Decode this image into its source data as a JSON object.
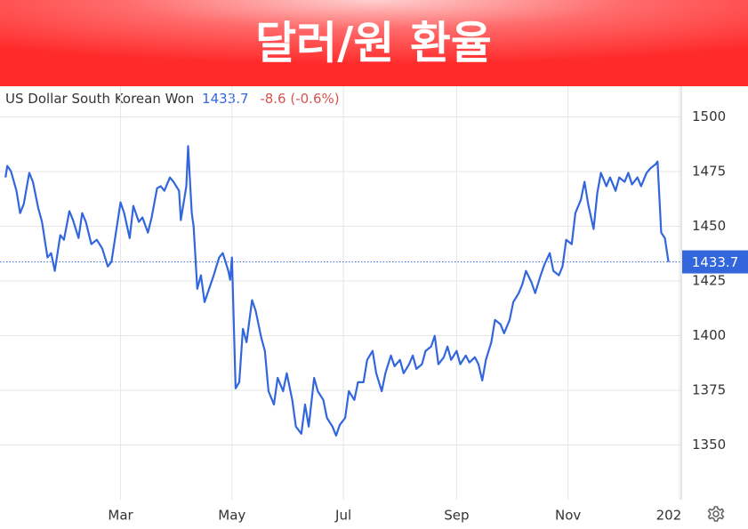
{
  "chart_data": {
    "type": "line",
    "title": "달러/원 환율",
    "series": [
      {
        "name": "US Dollar South Korean Won",
        "color": "#3366dd",
        "x": [
          -3,
          -2,
          0,
          3,
          5,
          7,
          10,
          12,
          15,
          17,
          20,
          22,
          24,
          27,
          29,
          32,
          34,
          37,
          39,
          41,
          44,
          47,
          50,
          53,
          55,
          58,
          60,
          62,
          65,
          67,
          70,
          72,
          75,
          77,
          80,
          82,
          84,
          87,
          89,
          92,
          93,
          96,
          97,
          99,
          100,
          102,
          104,
          106,
          109,
          111,
          114,
          116,
          119,
          120,
          121,
          123,
          125,
          127,
          129,
          132,
          134,
          137,
          139,
          141,
          144,
          146,
          149,
          151,
          154,
          156,
          159,
          161,
          163,
          166,
          168,
          171,
          173,
          176,
          178,
          180,
          183,
          185,
          188,
          190,
          193,
          195,
          198,
          200,
          203,
          205,
          208,
          210,
          213,
          215,
          218,
          220,
          222,
          225,
          227,
          230,
          232,
          234,
          237,
          239,
          241,
          244,
          246,
          249,
          251,
          254,
          256,
          258,
          260,
          263,
          265,
          268,
          270,
          273,
          275,
          278,
          280,
          282,
          285,
          287,
          290,
          292,
          295,
          297,
          300,
          302,
          304,
          307,
          309,
          312,
          314,
          316,
          319,
          321,
          323,
          326,
          328,
          331,
          333,
          336,
          338,
          340,
          343,
          345,
          348,
          350,
          353,
          354,
          356,
          358,
          360
        ],
        "values": [
          1472.3,
          1477.6,
          1475.2,
          1466.2,
          1456.0,
          1460.1,
          1474.4,
          1470.3,
          1458.1,
          1452.0,
          1435.7,
          1437.7,
          1429.6,
          1445.9,
          1443.8,
          1456.9,
          1452.8,
          1444.6,
          1456.0,
          1452.0,
          1441.8,
          1443.8,
          1439.8,
          1431.6,
          1433.7,
          1449.9,
          1460.9,
          1456.0,
          1444.6,
          1459.3,
          1452.0,
          1454.0,
          1447.1,
          1454.0,
          1467.4,
          1468.3,
          1466.2,
          1472.3,
          1470.3,
          1466.2,
          1452.8,
          1468.3,
          1486.6,
          1456.0,
          1449.9,
          1421.4,
          1427.6,
          1415.3,
          1422.7,
          1427.6,
          1435.7,
          1437.7,
          1429.6,
          1425.5,
          1435.7,
          1375.9,
          1378.7,
          1403.1,
          1397.0,
          1416.2,
          1411.3,
          1399.1,
          1393.0,
          1374.6,
          1368.5,
          1380.7,
          1374.6,
          1382.8,
          1370.6,
          1358.4,
          1355.1,
          1368.5,
          1358.4,
          1380.7,
          1374.6,
          1370.6,
          1362.4,
          1358.4,
          1354.3,
          1359.2,
          1362.4,
          1374.6,
          1370.6,
          1378.7,
          1378.7,
          1388.9,
          1393.0,
          1382.8,
          1374.6,
          1382.8,
          1390.9,
          1386.0,
          1388.9,
          1382.8,
          1386.9,
          1390.9,
          1384.8,
          1386.9,
          1393.0,
          1395.0,
          1399.9,
          1386.9,
          1390.1,
          1395.0,
          1388.9,
          1393.0,
          1386.9,
          1390.9,
          1387.7,
          1390.1,
          1386.9,
          1379.5,
          1388.9,
          1397.0,
          1407.2,
          1405.2,
          1401.1,
          1407.2,
          1415.3,
          1419.4,
          1423.5,
          1429.6,
          1424.3,
          1419.4,
          1427.6,
          1432.4,
          1437.7,
          1429.6,
          1427.6,
          1431.6,
          1443.8,
          1441.8,
          1456.0,
          1462.1,
          1470.3,
          1460.1,
          1448.7,
          1465.0,
          1474.4,
          1468.3,
          1472.3,
          1466.2,
          1472.3,
          1470.3,
          1474.4,
          1469.1,
          1472.3,
          1468.3,
          1474.4,
          1476.4,
          1478.4,
          1479.6,
          1447.1,
          1444.6,
          1433.7
        ]
      }
    ],
    "last_value": 1433.7,
    "change_text": "-8.6 (-0.6%)",
    "change_color": "#d9534f",
    "xlim": [
      -6,
      367
    ],
    "xticks": [
      {
        "value": 60,
        "label": "Mar"
      },
      {
        "value": 121,
        "label": "May"
      },
      {
        "value": 182,
        "label": "Jul"
      },
      {
        "value": 244,
        "label": "Sep"
      },
      {
        "value": 305,
        "label": "Nov"
      },
      {
        "value": 366,
        "label": "202"
      }
    ],
    "ylim": [
      1325,
      1514
    ],
    "yticks": [
      1350,
      1375,
      1400,
      1425,
      1450,
      1475,
      1500
    ],
    "grid": true
  }
}
